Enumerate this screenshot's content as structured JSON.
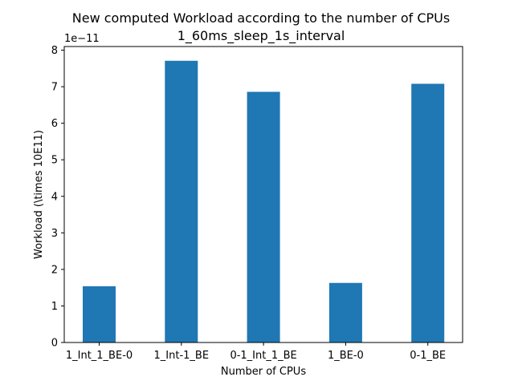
{
  "chart_data": {
    "type": "bar",
    "title": [
      "New computed Workload according to the number of CPUs",
      "1_60ms_sleep_1s_interval"
    ],
    "xlabel": "Number of CPUs",
    "ylabel": "Workload (\\times 10E11)",
    "offset_text": "1e−11",
    "categories": [
      "1_Int_1_BE-0",
      "1_Int-1_BE",
      "0-1_Int_1_BE",
      "1_BE-0",
      "0-1_BE"
    ],
    "values": [
      1.54,
      7.71,
      6.86,
      1.63,
      7.08
    ],
    "value_multiplier": "1e-11",
    "ylim": [
      0,
      8.1
    ],
    "yticks": [
      0,
      1,
      2,
      3,
      4,
      5,
      6,
      7,
      8
    ],
    "bar_color": "#1f77b4",
    "grid": false,
    "legend": false
  }
}
